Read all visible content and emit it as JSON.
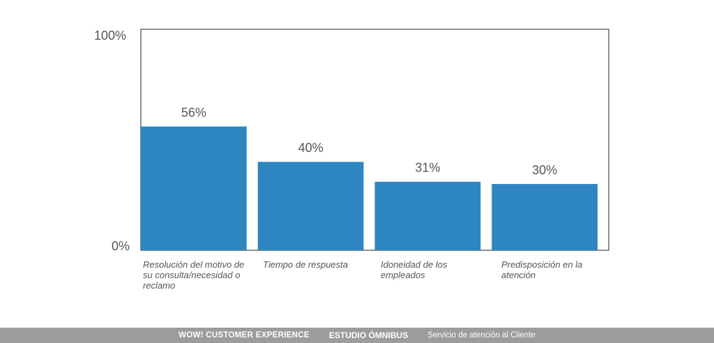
{
  "chart_data": {
    "type": "bar",
    "categories": [
      "Resolución del motivo de su consulta/necesidad o reclamo",
      "Tiempo de respuesta",
      "Idoneidad de los empleados",
      "Predisposición en la atención"
    ],
    "values": [
      56,
      40,
      31,
      30
    ],
    "data_labels": [
      "56%",
      "40%",
      "31%",
      "30%"
    ],
    "ylim": [
      0,
      100
    ],
    "yticks": [
      "0%",
      "100%"
    ],
    "bar_color": "#2e86c1",
    "grid": false
  },
  "footer": {
    "brand": "WOW! CUSTOMER EXPERIENCE",
    "study": "ESTUDIO ÓMNIBUS",
    "subject": "Servicio de atención al Cliente"
  },
  "colors": {
    "footer_bg": "#9b9c9e"
  }
}
